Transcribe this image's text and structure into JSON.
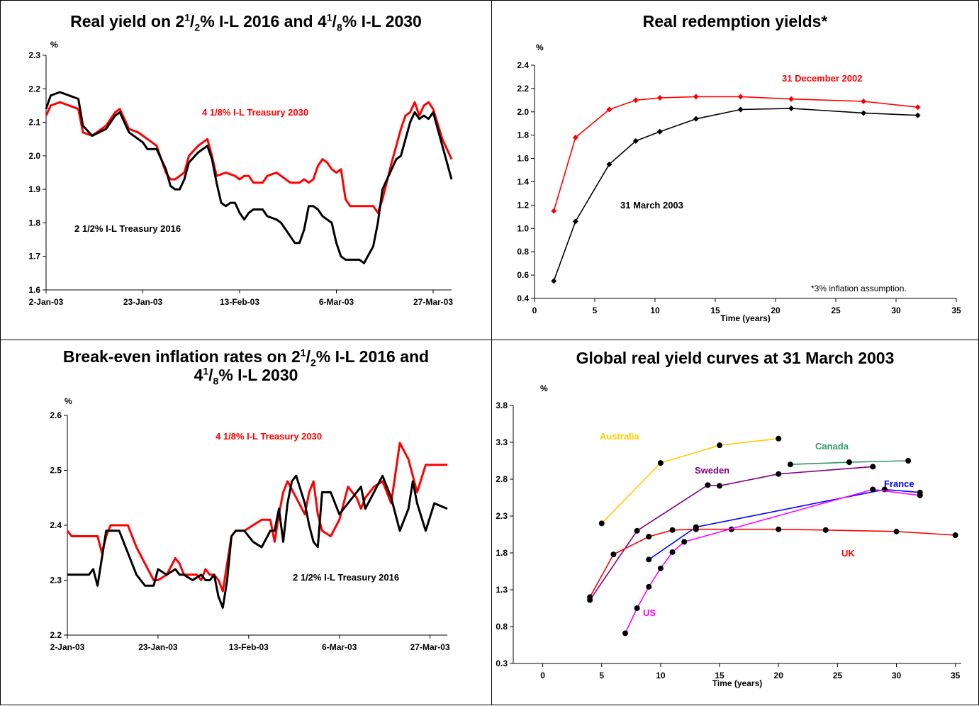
{
  "panels": {
    "p1": {
      "t1": "Real yield on 2",
      "s1": "1",
      "t2": "/",
      "b1": "2",
      "t3": "% I-L 2016 and 4",
      "s2": "1",
      "t4": "/",
      "b2": "8",
      "t5": "% I-L 2030"
    },
    "p2": {
      "title": "Real redemption yields*"
    },
    "p3": {
      "t1": "Break-even inflation rates on 2",
      "s1": "1",
      "t2": "/",
      "b1": "2",
      "t3": "% I-L 2016 and",
      "t4": "4",
      "s2": "1",
      "t5": "/",
      "b2": "8",
      "t6": "% I-L 2030"
    },
    "p4": {
      "title": "Global real yield curves at 31 March 2003"
    }
  },
  "chart_data": [
    {
      "type": "line",
      "unit_label": "%",
      "x_ticks": [
        "2-Jan-03",
        "23-Jan-03",
        "13-Feb-03",
        "6-Mar-03",
        "27-Mar-03"
      ],
      "x_tick_dates": [
        "2003-01-02",
        "2003-01-23",
        "2003-02-13",
        "2003-03-06",
        "2003-03-27"
      ],
      "xlim": [
        "2003-01-02",
        "2003-03-31"
      ],
      "ylim": [
        1.6,
        2.3
      ],
      "y_ticks": [
        "1.6",
        "1.7",
        "1.8",
        "1.9",
        "2.0",
        "2.1",
        "2.2",
        "2.3"
      ],
      "series": [
        {
          "name": "4 1/8% I-L Treasury 2030",
          "color": "#ff0000",
          "x": [
            "2003-01-02",
            "2003-01-03",
            "2003-01-05",
            "2003-01-07",
            "2003-01-09",
            "2003-01-10",
            "2003-01-12",
            "2003-01-15",
            "2003-01-17",
            "2003-01-18",
            "2003-01-20",
            "2003-01-22",
            "2003-01-23",
            "2003-01-24",
            "2003-01-26",
            "2003-01-28",
            "2003-01-29",
            "2003-01-30",
            "2003-02-01",
            "2003-02-02",
            "2003-02-04",
            "2003-02-06",
            "2003-02-07",
            "2003-02-08",
            "2003-02-10",
            "2003-02-12",
            "2003-02-13",
            "2003-02-14",
            "2003-02-15",
            "2003-02-16",
            "2003-02-18",
            "2003-02-19",
            "2003-02-21",
            "2003-02-22",
            "2003-02-24",
            "2003-02-26",
            "2003-02-27",
            "2003-02-28",
            "2003-03-01",
            "2003-03-02",
            "2003-03-03",
            "2003-03-04",
            "2003-03-05",
            "2003-03-06",
            "2003-03-07",
            "2003-03-08",
            "2003-03-09",
            "2003-03-10",
            "2003-03-11",
            "2003-03-12",
            "2003-03-14",
            "2003-03-15",
            "2003-03-16",
            "2003-03-18",
            "2003-03-19",
            "2003-03-20",
            "2003-03-21",
            "2003-03-22",
            "2003-03-23",
            "2003-03-24",
            "2003-03-25",
            "2003-03-26",
            "2003-03-27",
            "2003-03-29",
            "2003-03-31"
          ],
          "y": [
            2.12,
            2.15,
            2.16,
            2.15,
            2.14,
            2.07,
            2.06,
            2.09,
            2.13,
            2.14,
            2.08,
            2.07,
            2.06,
            2.05,
            2.03,
            1.95,
            1.93,
            1.93,
            1.95,
            2.0,
            2.03,
            2.05,
            2.0,
            1.94,
            1.95,
            1.94,
            1.93,
            1.94,
            1.94,
            1.92,
            1.92,
            1.94,
            1.95,
            1.94,
            1.92,
            1.92,
            1.93,
            1.92,
            1.93,
            1.97,
            1.99,
            1.98,
            1.96,
            1.95,
            1.96,
            1.87,
            1.85,
            1.85,
            1.85,
            1.85,
            1.85,
            1.83,
            1.87,
            1.98,
            2.03,
            2.08,
            2.12,
            2.13,
            2.16,
            2.12,
            2.15,
            2.16,
            2.14,
            2.05,
            1.99
          ]
        },
        {
          "name": "2 1/2% I-L Treasury 2016",
          "color": "#000000",
          "x": [
            "2003-01-02",
            "2003-01-03",
            "2003-01-05",
            "2003-01-07",
            "2003-01-09",
            "2003-01-10",
            "2003-01-12",
            "2003-01-15",
            "2003-01-17",
            "2003-01-18",
            "2003-01-20",
            "2003-01-22",
            "2003-01-23",
            "2003-01-24",
            "2003-01-26",
            "2003-01-28",
            "2003-01-29",
            "2003-01-30",
            "2003-01-31",
            "2003-02-01",
            "2003-02-02",
            "2003-02-04",
            "2003-02-06",
            "2003-02-07",
            "2003-02-08",
            "2003-02-09",
            "2003-02-10",
            "2003-02-11",
            "2003-02-12",
            "2003-02-13",
            "2003-02-14",
            "2003-02-15",
            "2003-02-16",
            "2003-02-18",
            "2003-02-19",
            "2003-02-21",
            "2003-02-22",
            "2003-02-24",
            "2003-02-25",
            "2003-02-26",
            "2003-02-27",
            "2003-02-28",
            "2003-03-01",
            "2003-03-02",
            "2003-03-03",
            "2003-03-04",
            "2003-03-05",
            "2003-03-06",
            "2003-03-07",
            "2003-03-08",
            "2003-03-09",
            "2003-03-10",
            "2003-03-11",
            "2003-03-12",
            "2003-03-14",
            "2003-03-15",
            "2003-03-16",
            "2003-03-18",
            "2003-03-19",
            "2003-03-20",
            "2003-03-21",
            "2003-03-22",
            "2003-03-23",
            "2003-03-24",
            "2003-03-25",
            "2003-03-26",
            "2003-03-27",
            "2003-03-29",
            "2003-03-31"
          ],
          "y": [
            2.14,
            2.18,
            2.19,
            2.18,
            2.17,
            2.09,
            2.06,
            2.08,
            2.12,
            2.13,
            2.07,
            2.05,
            2.04,
            2.02,
            2.02,
            1.96,
            1.91,
            1.9,
            1.9,
            1.93,
            1.98,
            2.01,
            2.03,
            1.99,
            1.92,
            1.86,
            1.85,
            1.86,
            1.86,
            1.83,
            1.81,
            1.83,
            1.84,
            1.84,
            1.82,
            1.81,
            1.8,
            1.76,
            1.74,
            1.74,
            1.78,
            1.85,
            1.85,
            1.84,
            1.82,
            1.81,
            1.8,
            1.74,
            1.7,
            1.69,
            1.69,
            1.69,
            1.69,
            1.68,
            1.73,
            1.8,
            1.9,
            1.96,
            1.99,
            2.0,
            2.05,
            2.1,
            2.13,
            2.11,
            2.12,
            2.11,
            2.13,
            2.03,
            1.93
          ]
        }
      ]
    },
    {
      "type": "line",
      "unit_label": "%",
      "xlabel": "Time (years)",
      "xlim": [
        0,
        35
      ],
      "x_ticks": [
        "0",
        "5",
        "10",
        "15",
        "20",
        "25",
        "30",
        "35"
      ],
      "ylim": [
        0.4,
        2.4
      ],
      "y_ticks": [
        "0.4",
        "0.6",
        "0.8",
        "1.0",
        "1.2",
        "1.4",
        "1.6",
        "1.8",
        "2.0",
        "2.2",
        "2.4"
      ],
      "footnote": "*3% inflation assumption.",
      "series": [
        {
          "name": "31 December 2002",
          "color": "#ff0000",
          "x": [
            1.6,
            3.4,
            6.2,
            8.4,
            10.4,
            13.4,
            17.1,
            21.3,
            27.3,
            31.8
          ],
          "y": [
            1.15,
            1.78,
            2.02,
            2.1,
            2.12,
            2.13,
            2.13,
            2.11,
            2.09,
            2.04
          ]
        },
        {
          "name": "31 March 2003",
          "color": "#000000",
          "x": [
            1.6,
            3.4,
            6.2,
            8.4,
            10.4,
            13.4,
            17.1,
            21.3,
            27.3,
            31.8
          ],
          "y": [
            0.55,
            1.06,
            1.55,
            1.75,
            1.83,
            1.94,
            2.02,
            2.03,
            1.99,
            1.97
          ]
        }
      ]
    },
    {
      "type": "line",
      "unit_label": "%",
      "x_ticks": [
        "2-Jan-03",
        "23-Jan-03",
        "13-Feb-03",
        "6-Mar-03",
        "27-Mar-03"
      ],
      "x_tick_dates": [
        "2003-01-02",
        "2003-01-23",
        "2003-02-13",
        "2003-03-06",
        "2003-03-27"
      ],
      "xlim": [
        "2003-01-02",
        "2003-03-31"
      ],
      "ylim": [
        2.2,
        2.6
      ],
      "y_ticks": [
        "2.2",
        "2.3",
        "2.4",
        "2.5",
        "2.6"
      ],
      "series": [
        {
          "name": "4 1/8% I-L Treasury 2030",
          "color": "#ff0000",
          "x": [
            "2003-01-02",
            "2003-01-03",
            "2003-01-05",
            "2003-01-07",
            "2003-01-09",
            "2003-01-10",
            "2003-01-11",
            "2003-01-12",
            "2003-01-14",
            "2003-01-16",
            "2003-01-18",
            "2003-01-20",
            "2003-01-22",
            "2003-01-23",
            "2003-01-25",
            "2003-01-27",
            "2003-01-28",
            "2003-01-29",
            "2003-01-30",
            "2003-02-01",
            "2003-02-02",
            "2003-02-03",
            "2003-02-04",
            "2003-02-05",
            "2003-02-06",
            "2003-02-07",
            "2003-02-08",
            "2003-02-09",
            "2003-02-10",
            "2003-02-12",
            "2003-02-14",
            "2003-02-16",
            "2003-02-18",
            "2003-02-19",
            "2003-02-20",
            "2003-02-21",
            "2003-02-22",
            "2003-02-24",
            "2003-02-26",
            "2003-02-27",
            "2003-02-28",
            "2003-03-01",
            "2003-03-02",
            "2003-03-04",
            "2003-03-06",
            "2003-03-08",
            "2003-03-10",
            "2003-03-11",
            "2003-03-12",
            "2003-03-14",
            "2003-03-16",
            "2003-03-18",
            "2003-03-20",
            "2003-03-22",
            "2003-03-23",
            "2003-03-24",
            "2003-03-26",
            "2003-03-28",
            "2003-03-31"
          ],
          "y": [
            2.39,
            2.38,
            2.38,
            2.38,
            2.38,
            2.35,
            2.38,
            2.4,
            2.4,
            2.4,
            2.36,
            2.33,
            2.3,
            2.3,
            2.31,
            2.34,
            2.33,
            2.31,
            2.31,
            2.31,
            2.3,
            2.32,
            2.31,
            2.31,
            2.3,
            2.28,
            2.33,
            2.38,
            2.39,
            2.39,
            2.4,
            2.41,
            2.41,
            2.37,
            2.42,
            2.46,
            2.48,
            2.45,
            2.42,
            2.46,
            2.48,
            2.42,
            2.39,
            2.38,
            2.41,
            2.47,
            2.45,
            2.43,
            2.45,
            2.47,
            2.48,
            2.44,
            2.55,
            2.52,
            2.49,
            2.46,
            2.51,
            2.51,
            2.51
          ]
        },
        {
          "name": "2 1/2% I-L Treasury 2016",
          "color": "#000000",
          "x": [
            "2003-01-02",
            "2003-01-03",
            "2003-01-05",
            "2003-01-07",
            "2003-01-08",
            "2003-01-09",
            "2003-01-10",
            "2003-01-11",
            "2003-01-12",
            "2003-01-14",
            "2003-01-16",
            "2003-01-18",
            "2003-01-20",
            "2003-01-22",
            "2003-01-23",
            "2003-01-25",
            "2003-01-27",
            "2003-01-28",
            "2003-01-29",
            "2003-01-31",
            "2003-02-02",
            "2003-02-03",
            "2003-02-04",
            "2003-02-05",
            "2003-02-06",
            "2003-02-07",
            "2003-02-08",
            "2003-02-09",
            "2003-02-10",
            "2003-02-12",
            "2003-02-14",
            "2003-02-16",
            "2003-02-18",
            "2003-02-19",
            "2003-02-20",
            "2003-02-21",
            "2003-02-22",
            "2003-02-23",
            "2003-02-24",
            "2003-02-26",
            "2003-02-27",
            "2003-02-28",
            "2003-03-01",
            "2003-03-02",
            "2003-03-04",
            "2003-03-06",
            "2003-03-08",
            "2003-03-10",
            "2003-03-11",
            "2003-03-12",
            "2003-03-14",
            "2003-03-16",
            "2003-03-18",
            "2003-03-20",
            "2003-03-22",
            "2003-03-23",
            "2003-03-24",
            "2003-03-26",
            "2003-03-28",
            "2003-03-31"
          ],
          "y": [
            2.31,
            2.31,
            2.31,
            2.31,
            2.32,
            2.29,
            2.34,
            2.39,
            2.39,
            2.39,
            2.35,
            2.31,
            2.29,
            2.29,
            2.32,
            2.31,
            2.32,
            2.31,
            2.31,
            2.3,
            2.31,
            2.3,
            2.3,
            2.31,
            2.27,
            2.25,
            2.3,
            2.38,
            2.39,
            2.39,
            2.37,
            2.36,
            2.39,
            2.39,
            2.43,
            2.37,
            2.44,
            2.48,
            2.49,
            2.44,
            2.4,
            2.37,
            2.36,
            2.46,
            2.46,
            2.42,
            2.44,
            2.46,
            2.47,
            2.43,
            2.46,
            2.49,
            2.45,
            2.39,
            2.43,
            2.48,
            2.44,
            2.39,
            2.44,
            2.43
          ]
        }
      ]
    },
    {
      "type": "line",
      "unit_label": "%",
      "xlabel": "Time (years)",
      "xlim": [
        -2.5,
        35.5
      ],
      "x_ticks": [
        "0",
        "5",
        "10",
        "15",
        "20",
        "25",
        "30",
        "35"
      ],
      "ylim": [
        0.3,
        3.8
      ],
      "y_ticks": [
        "0.3",
        "0.8",
        "1.3",
        "1.8",
        "2.3",
        "2.8",
        "3.3",
        "3.8"
      ],
      "series": [
        {
          "name": "Australia",
          "color": "#ffcc00",
          "x": [
            5,
            10,
            15,
            20
          ],
          "y": [
            2.2,
            3.02,
            3.26,
            3.35
          ]
        },
        {
          "name": "Canada",
          "color": "#339966",
          "x": [
            21,
            26,
            31
          ],
          "y": [
            3.0,
            3.03,
            3.05
          ]
        },
        {
          "name": "Sweden",
          "color": "#800080",
          "x": [
            4,
            8,
            14,
            15,
            20,
            28
          ],
          "y": [
            1.16,
            2.1,
            2.72,
            2.71,
            2.87,
            2.97
          ]
        },
        {
          "name": "France",
          "color": "#0000ff",
          "x": [
            9,
            13,
            29,
            32
          ],
          "y": [
            1.71,
            2.15,
            2.66,
            2.62
          ]
        },
        {
          "name": "UK",
          "color": "#ff0000",
          "x": [
            4,
            6,
            9,
            11,
            13,
            16,
            20,
            24,
            30,
            35
          ],
          "y": [
            1.2,
            1.78,
            2.02,
            2.11,
            2.12,
            2.12,
            2.12,
            2.11,
            2.09,
            2.04
          ]
        },
        {
          "name": "US",
          "color": "#ff00ff",
          "x": [
            7,
            8,
            9,
            10,
            11,
            12,
            28,
            32
          ],
          "y": [
            0.71,
            1.05,
            1.34,
            1.59,
            1.81,
            1.95,
            2.66,
            2.58
          ]
        }
      ]
    }
  ],
  "annotations": {
    "p1_red": "4 1/8% I-L Treasury 2030",
    "p1_black": "2 1/2% I-L Treasury 2016",
    "p2_red": "31 December 2002",
    "p2_black": "31 March 2003",
    "p3_red": "4 1/8% I-L Treasury 2030",
    "p3_black": "2 1/2% I-L Treasury 2016",
    "p4_australia": "Australia",
    "p4_canada": "Canada",
    "p4_sweden": "Sweden",
    "p4_france": "France",
    "p4_uk": "UK",
    "p4_us": "US"
  }
}
